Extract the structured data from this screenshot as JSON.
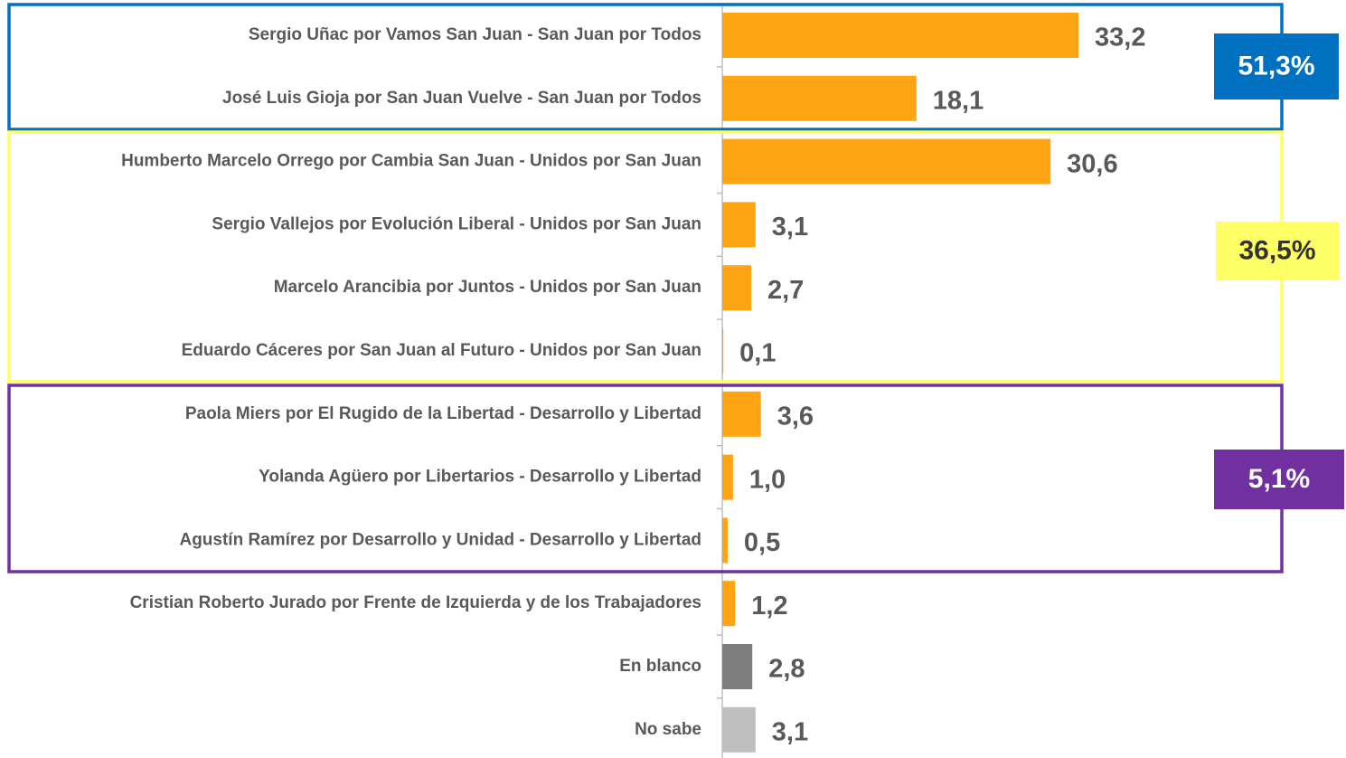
{
  "chart_data": {
    "type": "bar",
    "orientation": "horizontal",
    "categories": [
      "Sergio Uñac por Vamos San Juan - San Juan por Todos",
      "José Luis Gioja por San Juan Vuelve - San Juan por Todos",
      "Humberto Marcelo Orrego por Cambia San Juan - Unidos por San Juan",
      "Sergio Vallejos por Evolución Liberal - Unidos por San Juan",
      "Marcelo Arancibia por Juntos - Unidos por San Juan",
      "Eduardo Cáceres por San Juan al Futuro - Unidos por San Juan",
      "Paola Miers por El Rugido de la Libertad - Desarrollo y Libertad",
      "Yolanda Agüero por Libertarios - Desarrollo y Libertad",
      "Agustín Ramírez por Desarrollo y Unidad - Desarrollo y Libertad",
      "Cristian Roberto Jurado por Frente de Izquierda y de los Trabajadores",
      "En blanco",
      "No sabe"
    ],
    "values": [
      33.2,
      18.1,
      30.6,
      3.1,
      2.7,
      0.1,
      3.6,
      1.0,
      0.5,
      1.2,
      2.8,
      3.1
    ],
    "value_labels": [
      "33,2",
      "18,1",
      "30,6",
      "3,1",
      "2,7",
      "0,1",
      "3,6",
      "1,0",
      "0,5",
      "1,2",
      "2,8",
      "3,1"
    ],
    "colors": [
      "#ffa412",
      "#ffa412",
      "#ffa412",
      "#ffa412",
      "#ffa412",
      "#ffa412",
      "#ffa412",
      "#ffa412",
      "#ffa412",
      "#ffa412",
      "#7f7f7f",
      "#bfbfbf"
    ],
    "annotations": [
      {
        "text": "51,3%",
        "color": "#0070c0",
        "text_color": "#ffffff"
      },
      {
        "text": "36,5%",
        "color": "#ffff66",
        "text_color": "#333333"
      },
      {
        "text": "5,1%",
        "color": "#7030a0",
        "text_color": "#ffffff"
      }
    ]
  }
}
